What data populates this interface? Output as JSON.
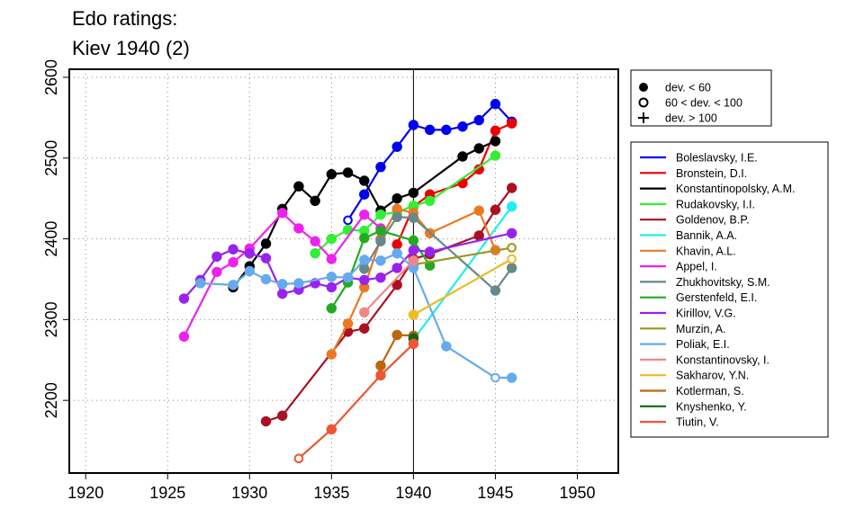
{
  "chart_data": {
    "type": "line",
    "title_lines": [
      "Edo ratings:",
      "Kiev 1940 (2)"
    ],
    "xlabel": "",
    "ylabel": "",
    "xlim": [
      1919,
      1952.5
    ],
    "ylim": [
      2110,
      2610
    ],
    "xticks": [
      1920,
      1925,
      1930,
      1935,
      1940,
      1945,
      1950
    ],
    "yticks": [
      2200,
      2300,
      2400,
      2500,
      2600
    ],
    "grid": "dotted",
    "reference_line_x": 1940,
    "legend_position": "right",
    "deviation_legend": [
      {
        "marker": "filled",
        "label": "dev. < 60"
      },
      {
        "marker": "open",
        "label": "60 < dev. < 100"
      },
      {
        "marker": "plus",
        "label": "dev. > 100"
      }
    ],
    "series": [
      {
        "name": "Boleslavsky, I.E.",
        "color": "#0000ee",
        "points": [
          [
            1936,
            2423,
            "o"
          ],
          [
            1937,
            2455,
            "f"
          ],
          [
            1938,
            2489,
            "f"
          ],
          [
            1939,
            2514,
            "f"
          ],
          [
            1940,
            2541,
            "f"
          ],
          [
            1941,
            2535,
            "f"
          ],
          [
            1942,
            2535,
            "f"
          ],
          [
            1943,
            2539,
            "f"
          ],
          [
            1944,
            2547,
            "f"
          ],
          [
            1945,
            2567,
            "f"
          ],
          [
            1946,
            2545,
            "f"
          ]
        ]
      },
      {
        "name": "Bronstein, D.I.",
        "color": "#ee0000",
        "points": [
          [
            1939,
            2393,
            "f"
          ],
          [
            1940,
            2440,
            "f"
          ],
          [
            1941,
            2455,
            "f"
          ],
          [
            1943,
            2469,
            "f"
          ],
          [
            1944,
            2486,
            "f"
          ],
          [
            1945,
            2534,
            "f"
          ],
          [
            1946,
            2543,
            "f"
          ]
        ]
      },
      {
        "name": "Konstantinopolsky, A.M.",
        "color": "#000000",
        "points": [
          [
            1929,
            2340,
            "f"
          ],
          [
            1930,
            2366,
            "f"
          ],
          [
            1931,
            2394,
            "f"
          ],
          [
            1932,
            2437,
            "f"
          ],
          [
            1933,
            2465,
            "f"
          ],
          [
            1934,
            2447,
            "f"
          ],
          [
            1935,
            2480,
            "f"
          ],
          [
            1936,
            2482,
            "f"
          ],
          [
            1937,
            2472,
            "f"
          ],
          [
            1938,
            2435,
            "f"
          ],
          [
            1939,
            2450,
            "f"
          ],
          [
            1940,
            2457,
            "f"
          ],
          [
            1943,
            2502,
            "f"
          ],
          [
            1944,
            2512,
            "f"
          ],
          [
            1945,
            2521,
            "f"
          ]
        ]
      },
      {
        "name": "Rudakovsky, I.I.",
        "color": "#33ee33",
        "points": [
          [
            1934,
            2382,
            "f"
          ],
          [
            1935,
            2400,
            "f"
          ],
          [
            1936,
            2411,
            "f"
          ],
          [
            1937,
            2410,
            "f"
          ],
          [
            1938,
            2430,
            "f"
          ],
          [
            1939,
            2433,
            "f"
          ],
          [
            1940,
            2441,
            "f"
          ],
          [
            1941,
            2447,
            "f"
          ],
          [
            1945,
            2503,
            "f"
          ]
        ]
      },
      {
        "name": "Goldenov, B.P.",
        "color": "#aa1122",
        "points": [
          [
            1931,
            2174,
            "f"
          ],
          [
            1932,
            2181,
            "f"
          ],
          [
            1936,
            2285,
            "f"
          ],
          [
            1937,
            2289,
            "f"
          ],
          [
            1939,
            2343,
            "f"
          ],
          [
            1940,
            2375,
            "f"
          ],
          [
            1941,
            2381,
            "f"
          ],
          [
            1944,
            2404,
            "f"
          ],
          [
            1945,
            2436,
            "f"
          ],
          [
            1946,
            2463,
            "f"
          ]
        ]
      },
      {
        "name": "Bannik, A.A.",
        "color": "#22eeee",
        "points": [
          [
            1940,
            2275,
            "f"
          ],
          [
            1946,
            2440,
            "f"
          ]
        ]
      },
      {
        "name": "Khavin, A.L.",
        "color": "#ee7722",
        "points": [
          [
            1935,
            2257,
            "f"
          ],
          [
            1936,
            2295,
            "f"
          ],
          [
            1937,
            2340,
            "f"
          ],
          [
            1938,
            2400,
            "f"
          ],
          [
            1939,
            2437,
            "f"
          ],
          [
            1940,
            2432,
            "f"
          ],
          [
            1941,
            2407,
            "f"
          ],
          [
            1944,
            2435,
            "f"
          ],
          [
            1945,
            2386,
            "f"
          ]
        ]
      },
      {
        "name": "Appel, I.",
        "color": "#ee22ee",
        "points": [
          [
            1926,
            2279,
            "f"
          ],
          [
            1928,
            2359,
            "f"
          ],
          [
            1929,
            2371,
            "f"
          ],
          [
            1930,
            2388,
            "f"
          ],
          [
            1932,
            2432,
            "f"
          ],
          [
            1933,
            2413,
            "f"
          ],
          [
            1934,
            2397,
            "f"
          ],
          [
            1935,
            2375,
            "f"
          ],
          [
            1937,
            2430,
            "f"
          ],
          [
            1938,
            2413,
            "f"
          ]
        ]
      },
      {
        "name": "Zhukhovitsky, S.M.",
        "color": "#668888",
        "points": [
          [
            1937,
            2363,
            "f"
          ],
          [
            1938,
            2397,
            "f"
          ],
          [
            1939,
            2427,
            "f"
          ],
          [
            1940,
            2426,
            "f"
          ],
          [
            1945,
            2336,
            "f"
          ],
          [
            1946,
            2364,
            "f"
          ]
        ]
      },
      {
        "name": "Gerstenfeld, E.I.",
        "color": "#22aa22",
        "points": [
          [
            1935,
            2314,
            "f"
          ],
          [
            1936,
            2346,
            "f"
          ],
          [
            1937,
            2401,
            "f"
          ],
          [
            1938,
            2410,
            "f"
          ],
          [
            1940,
            2398,
            "f"
          ],
          [
            1941,
            2367,
            "f"
          ]
        ]
      },
      {
        "name": "Kirillov, V.G.",
        "color": "#9922ee",
        "points": [
          [
            1926,
            2326,
            "f"
          ],
          [
            1927,
            2349,
            "f"
          ],
          [
            1928,
            2378,
            "f"
          ],
          [
            1929,
            2387,
            "f"
          ],
          [
            1930,
            2382,
            "f"
          ],
          [
            1931,
            2376,
            "f"
          ],
          [
            1932,
            2332,
            "f"
          ],
          [
            1933,
            2337,
            "f"
          ],
          [
            1934,
            2345,
            "f"
          ],
          [
            1935,
            2340,
            "f"
          ],
          [
            1936,
            2352,
            "f"
          ],
          [
            1937,
            2349,
            "f"
          ],
          [
            1938,
            2352,
            "f"
          ],
          [
            1939,
            2364,
            "f"
          ],
          [
            1940,
            2386,
            "f"
          ],
          [
            1941,
            2384,
            "f"
          ],
          [
            1946,
            2407,
            "f"
          ]
        ]
      },
      {
        "name": "Murzin, A.",
        "color": "#999922",
        "points": [
          [
            1940,
            2368,
            "f"
          ],
          [
            1946,
            2389,
            "o"
          ]
        ]
      },
      {
        "name": "Poliak, E.I.",
        "color": "#66aaee",
        "points": [
          [
            1927,
            2345,
            "f"
          ],
          [
            1929,
            2343,
            "f"
          ],
          [
            1930,
            2360,
            "f"
          ],
          [
            1931,
            2350,
            "f"
          ],
          [
            1932,
            2344,
            "f"
          ],
          [
            1933,
            2345,
            "f"
          ],
          [
            1935,
            2353,
            "f"
          ],
          [
            1936,
            2352,
            "f"
          ],
          [
            1937,
            2374,
            "f"
          ],
          [
            1938,
            2373,
            "f"
          ],
          [
            1939,
            2382,
            "f"
          ],
          [
            1940,
            2364,
            "f"
          ],
          [
            1942,
            2267,
            "f"
          ],
          [
            1945,
            2228,
            "o"
          ],
          [
            1946,
            2228,
            "f"
          ]
        ]
      },
      {
        "name": "Konstantinovsky, I.",
        "color": "#ee8888",
        "points": [
          [
            1937,
            2309,
            "f"
          ],
          [
            1940,
            2373,
            "f"
          ]
        ]
      },
      {
        "name": "Sakharov, Y.N.",
        "color": "#eebb22",
        "points": [
          [
            1940,
            2306,
            "f"
          ],
          [
            1946,
            2375,
            "o"
          ]
        ]
      },
      {
        "name": "Kotlerman, S.",
        "color": "#bb6611",
        "points": [
          [
            1938,
            2243,
            "f"
          ],
          [
            1939,
            2281,
            "f"
          ],
          [
            1940,
            2280,
            "f"
          ]
        ]
      },
      {
        "name": "Knyshenko, Y.",
        "color": "#116611",
        "points": [
          [
            1940,
            2277,
            "f"
          ]
        ]
      },
      {
        "name": "Tiutin, V.",
        "color": "#ee5533",
        "points": [
          [
            1933,
            2128,
            "o"
          ],
          [
            1935,
            2164,
            "f"
          ],
          [
            1938,
            2231,
            "f"
          ],
          [
            1940,
            2270,
            "f"
          ]
        ]
      }
    ]
  }
}
